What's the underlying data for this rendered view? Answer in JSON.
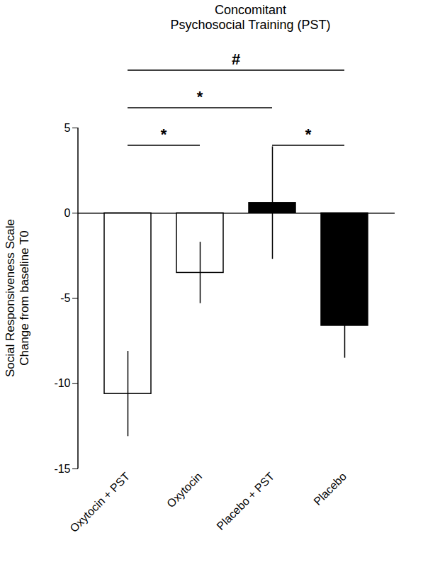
{
  "chart_data": {
    "type": "bar",
    "title": "Concomitant\nPsychosocial Training (PST)",
    "y_label": "Social Responsiveness Scale\nChange from baseline T0",
    "categories": [
      "Oxytocin + PST",
      "Oxytocin",
      "Placebo + PST",
      "Placebo"
    ],
    "values": [
      -10.6,
      -3.5,
      0.6,
      -6.6
    ],
    "errors": [
      2.5,
      1.8,
      3.3,
      1.9
    ],
    "colors": [
      "#ffffff",
      "#ffffff",
      "#000000",
      "#000000"
    ],
    "ylim": [
      -15,
      5
    ],
    "yticks": [
      -15,
      -10,
      -5,
      0,
      5
    ],
    "grid": false,
    "annotations": [
      {
        "between": [
          "Oxytocin + PST",
          "Placebo"
        ],
        "label": "#"
      },
      {
        "between": [
          "Oxytocin + PST",
          "Placebo + PST"
        ],
        "label": "*"
      },
      {
        "between": [
          "Oxytocin + PST",
          "Oxytocin"
        ],
        "label": "*"
      },
      {
        "between": [
          "Placebo + PST",
          "Placebo"
        ],
        "label": "*"
      }
    ]
  }
}
